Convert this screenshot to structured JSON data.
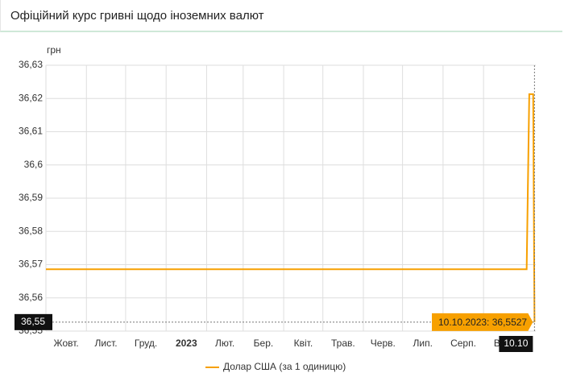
{
  "chart_data": {
    "type": "line",
    "title": "Офіційний курс гривні щодо іноземних валют",
    "y_label": "грн",
    "x": [
      "01.10.2022",
      "04.10.2023",
      "06.10.2023",
      "09.10.2023",
      "10.10.2023"
    ],
    "series": [
      {
        "name": "Долар США (за 1 одиницю)",
        "color": "#f7a000",
        "values": [
          36.5686,
          36.5686,
          36.6213,
          36.6213,
          36.5527
        ]
      }
    ],
    "xlim": [
      "01.10.2022",
      "11.10.2023"
    ],
    "xticks": [
      {
        "value": "01.10.2022",
        "label": "Жовт."
      },
      {
        "value": "01.11.2022",
        "label": "Лист."
      },
      {
        "value": "01.12.2022",
        "label": "Груд."
      },
      {
        "value": "01.01.2023",
        "label": "2023"
      },
      {
        "value": "01.02.2023",
        "label": "Лют."
      },
      {
        "value": "01.03.2023",
        "label": "Бер."
      },
      {
        "value": "01.04.2023",
        "label": "Квіт."
      },
      {
        "value": "01.05.2023",
        "label": "Трав."
      },
      {
        "value": "01.06.2023",
        "label": "Черв."
      },
      {
        "value": "01.07.2023",
        "label": "Лип."
      },
      {
        "value": "01.08.2023",
        "label": "Серп."
      },
      {
        "value": "01.09.2023",
        "label": "Вер."
      }
    ],
    "ylim": [
      36.55,
      36.63
    ],
    "yticks": [
      {
        "value": 36.55,
        "label": "36,55"
      },
      {
        "value": 36.56,
        "label": "36,56"
      },
      {
        "value": 36.57,
        "label": "36,57"
      },
      {
        "value": 36.58,
        "label": "36,58"
      },
      {
        "value": 36.59,
        "label": "36,59"
      },
      {
        "value": 36.6,
        "label": "36,6"
      },
      {
        "value": 36.61,
        "label": "36,61"
      },
      {
        "value": 36.62,
        "label": "36,62"
      },
      {
        "value": 36.63,
        "label": "36,63"
      }
    ],
    "grid": true,
    "tooltip": "10.10.2023: 36,5527",
    "crosshair": {
      "y_label": "36,55",
      "x_label": "10.10"
    }
  }
}
